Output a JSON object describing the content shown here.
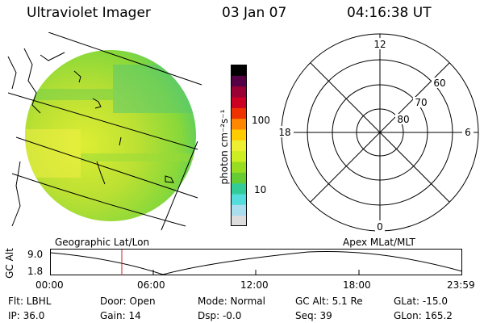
{
  "header": {
    "instrument": "Ultraviolet Imager",
    "date": "03 Jan 07",
    "time": "04:16:38 UT"
  },
  "colorbar": {
    "unit_label": "photon cm⁻²s⁻¹",
    "ticks": [
      "100",
      "10"
    ],
    "colors": [
      "#dddddd",
      "#aaddee",
      "#55dddd",
      "#33cc99",
      "#66cc33",
      "#99dd22",
      "#ccee22",
      "#eeee33",
      "#ffcc00",
      "#ff8800",
      "#ee3300",
      "#cc0022",
      "#990033",
      "#550044",
      "#000000"
    ]
  },
  "polar": {
    "mlt_labels": {
      "top": "12",
      "left": "18",
      "right": "6",
      "bottom": "0"
    },
    "lat_labels": [
      "60",
      "70",
      "80"
    ]
  },
  "map_labels": {
    "left": "Geographic Lat/Lon",
    "right": "Apex MLat/MLT"
  },
  "altitude_plot": {
    "ylabel": "GC Alt",
    "y_ticks": [
      "9.0",
      "1.8"
    ],
    "x_ticks": [
      "00:00",
      "06:00",
      "12:00",
      "18:00",
      "23:59"
    ],
    "marker_color": "#cc2222"
  },
  "footer": {
    "flt": "Flt: LBHL",
    "ip": "IP: 36.0",
    "door": "Door: Open",
    "gain": "Gain: 14",
    "mode": "Mode: Normal",
    "dsp": "Dsp:   -0.0",
    "gc_alt": "GC Alt: 5.1 Re",
    "seq": "Seq: 39",
    "glat": "GLat: -15.0",
    "glon": "GLon: 165.2"
  }
}
